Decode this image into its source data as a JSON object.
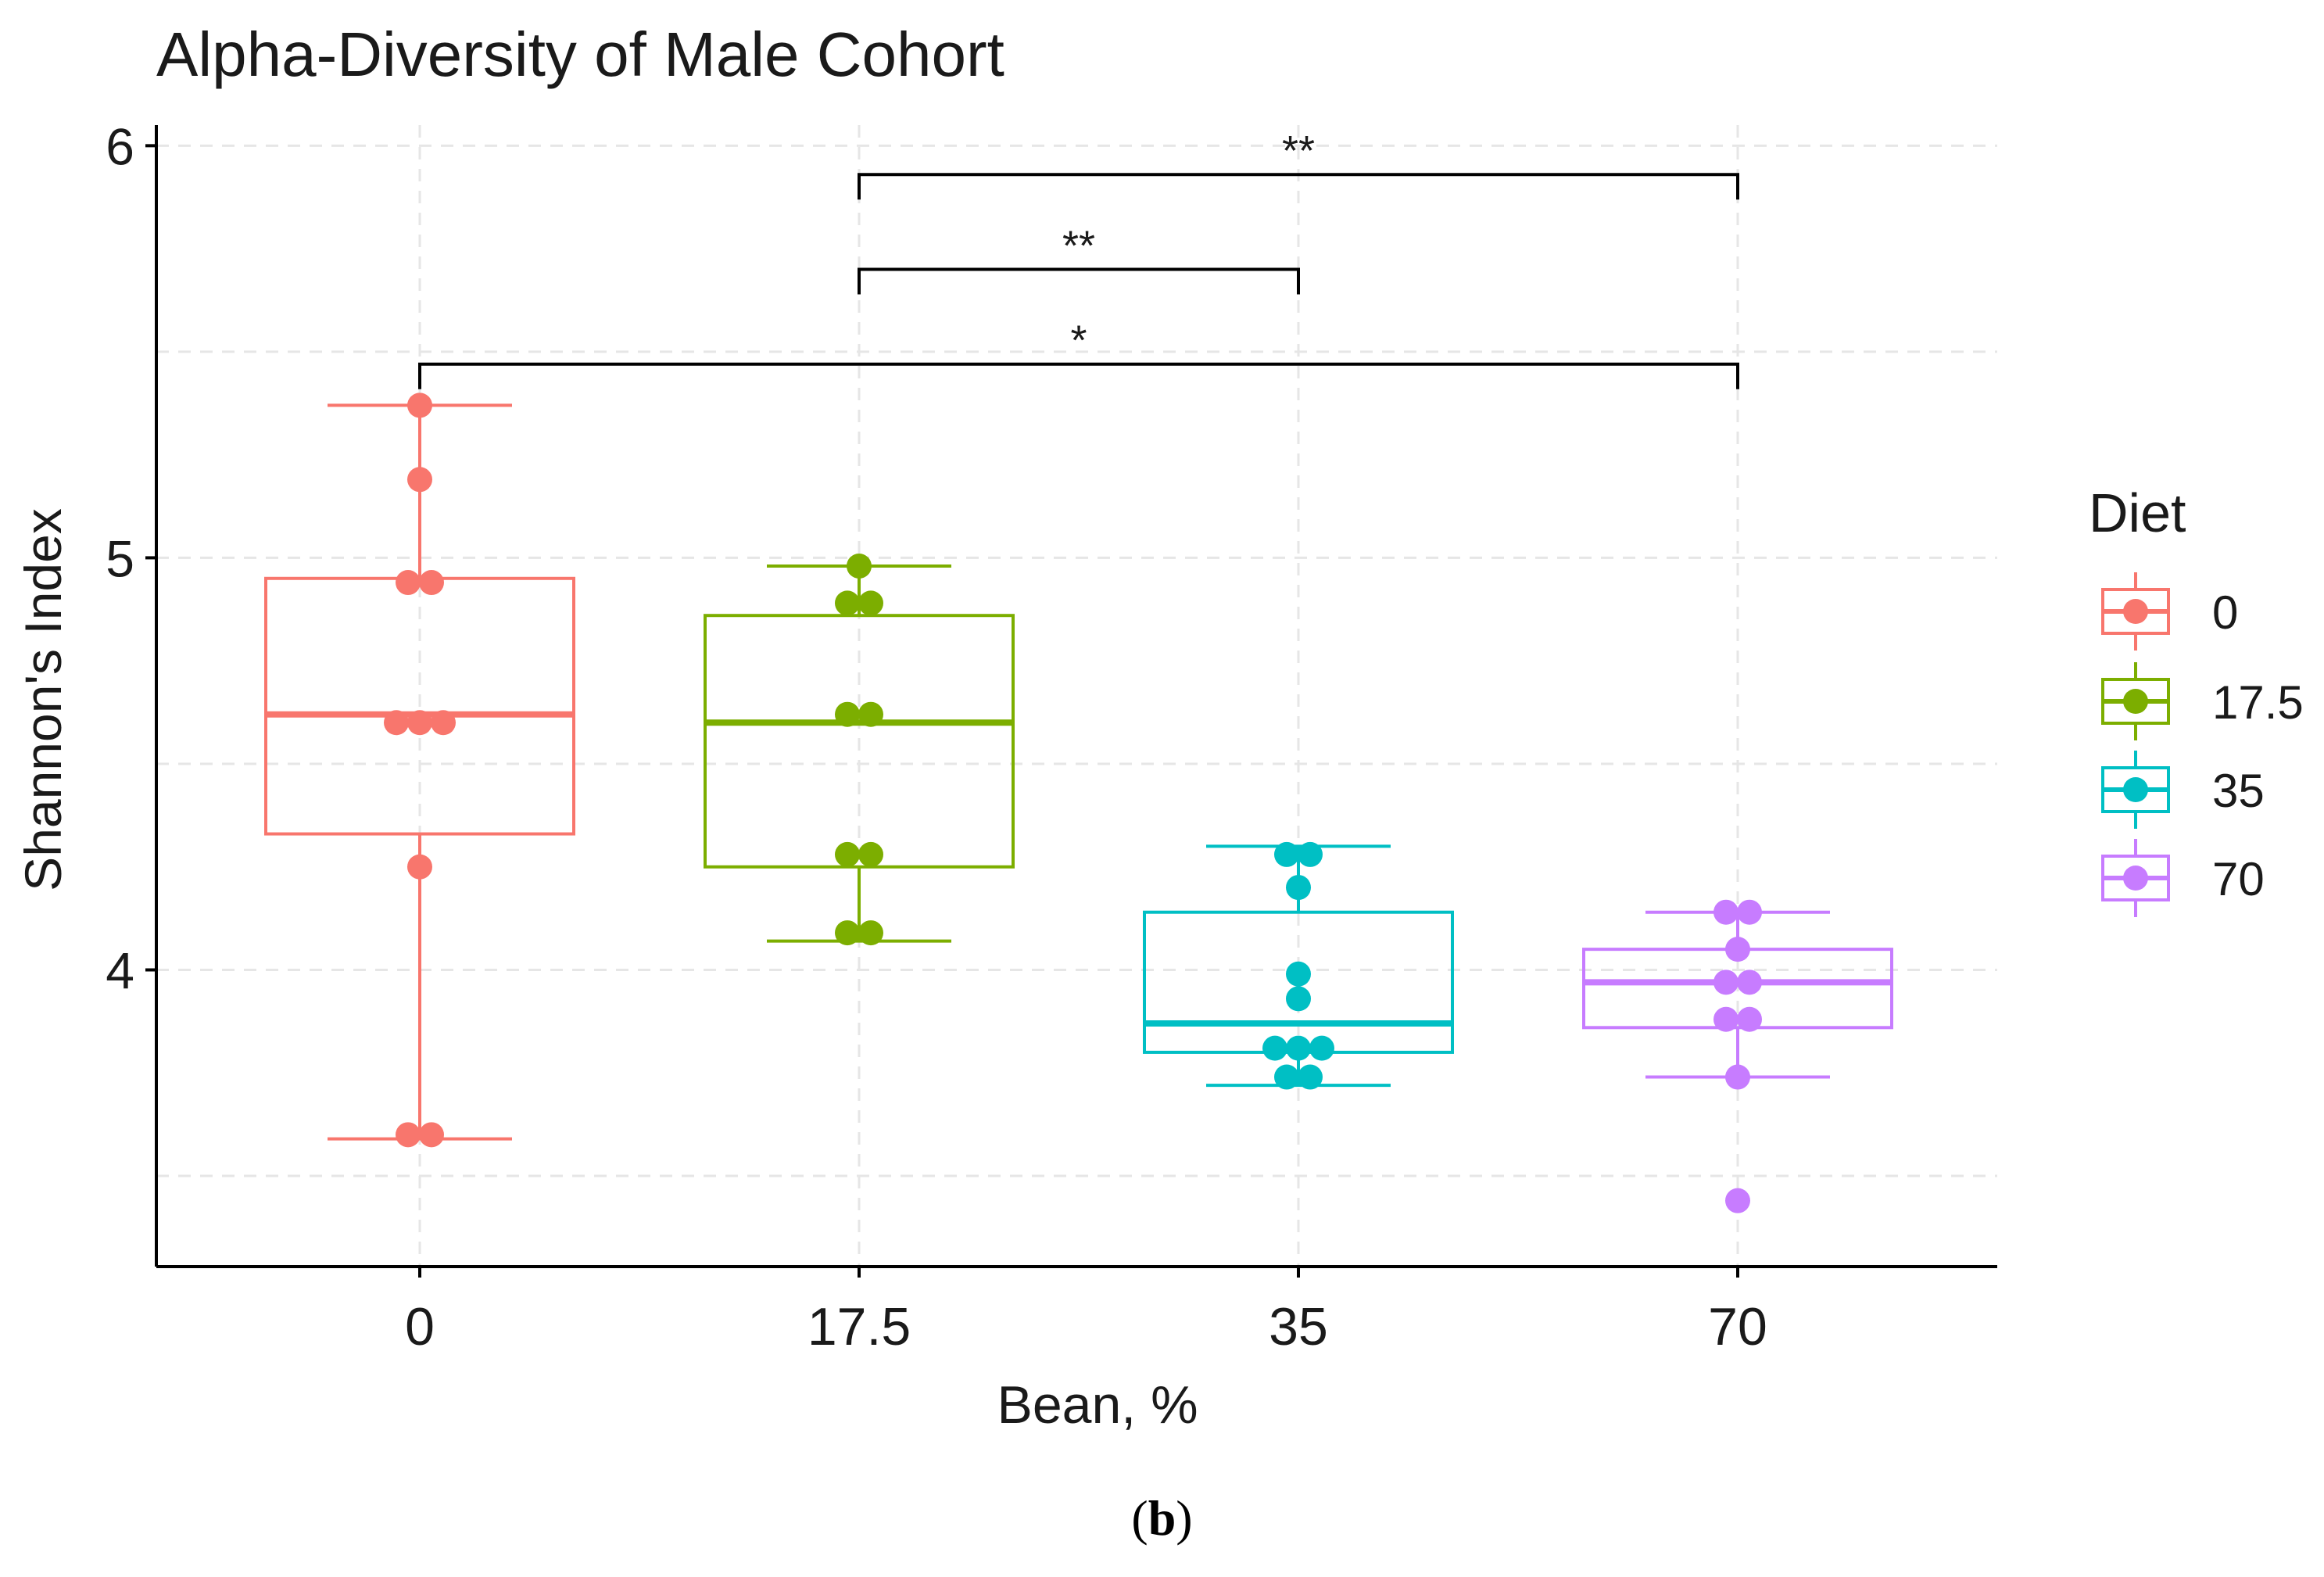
{
  "chart_data": {
    "type": "boxplot",
    "title": "Alpha-Diversity of Male Cohort",
    "xlabel": "Bean, %",
    "ylabel": "Shannon's Index",
    "ylim": [
      3.28,
      6.05
    ],
    "y_ticks": [
      "4",
      "5",
      "6"
    ],
    "grid": true,
    "legend": {
      "title": "Diet",
      "position": "right"
    },
    "categories": [
      "0",
      "17.5",
      "35",
      "70"
    ],
    "series": [
      {
        "name": "0",
        "color": "#F8766D",
        "box": {
          "q1": 4.33,
          "median": 4.62,
          "q3": 4.95,
          "whisker_low": 3.59,
          "whisker_high": 5.37
        },
        "points": [
          5.37,
          5.19,
          4.94,
          4.94,
          4.6,
          4.6,
          4.6,
          4.25,
          3.6,
          3.6
        ]
      },
      {
        "name": "17.5",
        "color": "#7CAE00",
        "box": {
          "q1": 4.25,
          "median": 4.6,
          "q3": 4.86,
          "whisker_low": 4.07,
          "whisker_high": 4.98
        },
        "points": [
          4.98,
          4.89,
          4.89,
          4.62,
          4.62,
          4.28,
          4.28,
          4.09,
          4.09
        ]
      },
      {
        "name": "35",
        "color": "#00BFC4",
        "box": {
          "q1": 3.8,
          "median": 3.87,
          "q3": 4.14,
          "whisker_low": 3.72,
          "whisker_high": 4.3
        },
        "points": [
          4.28,
          4.28,
          4.2,
          3.99,
          3.93,
          3.81,
          3.81,
          3.81,
          3.74,
          3.74
        ]
      },
      {
        "name": "70",
        "color": "#C77CFF",
        "box": {
          "q1": 3.86,
          "median": 3.97,
          "q3": 4.05,
          "whisker_low": 3.74,
          "whisker_high": 4.14
        },
        "points": [
          4.14,
          4.14,
          4.05,
          3.97,
          3.97,
          3.88,
          3.88,
          3.74,
          3.44
        ]
      }
    ],
    "significance": [
      {
        "from": "17.5",
        "to": "70",
        "label": "**",
        "y": 5.93
      },
      {
        "from": "17.5",
        "to": "35",
        "label": "**",
        "y": 5.7
      },
      {
        "from": "0",
        "to": "70",
        "label": "*",
        "y": 5.47
      }
    ]
  },
  "caption": {
    "open": "(",
    "letter": "b",
    "close": ")"
  }
}
